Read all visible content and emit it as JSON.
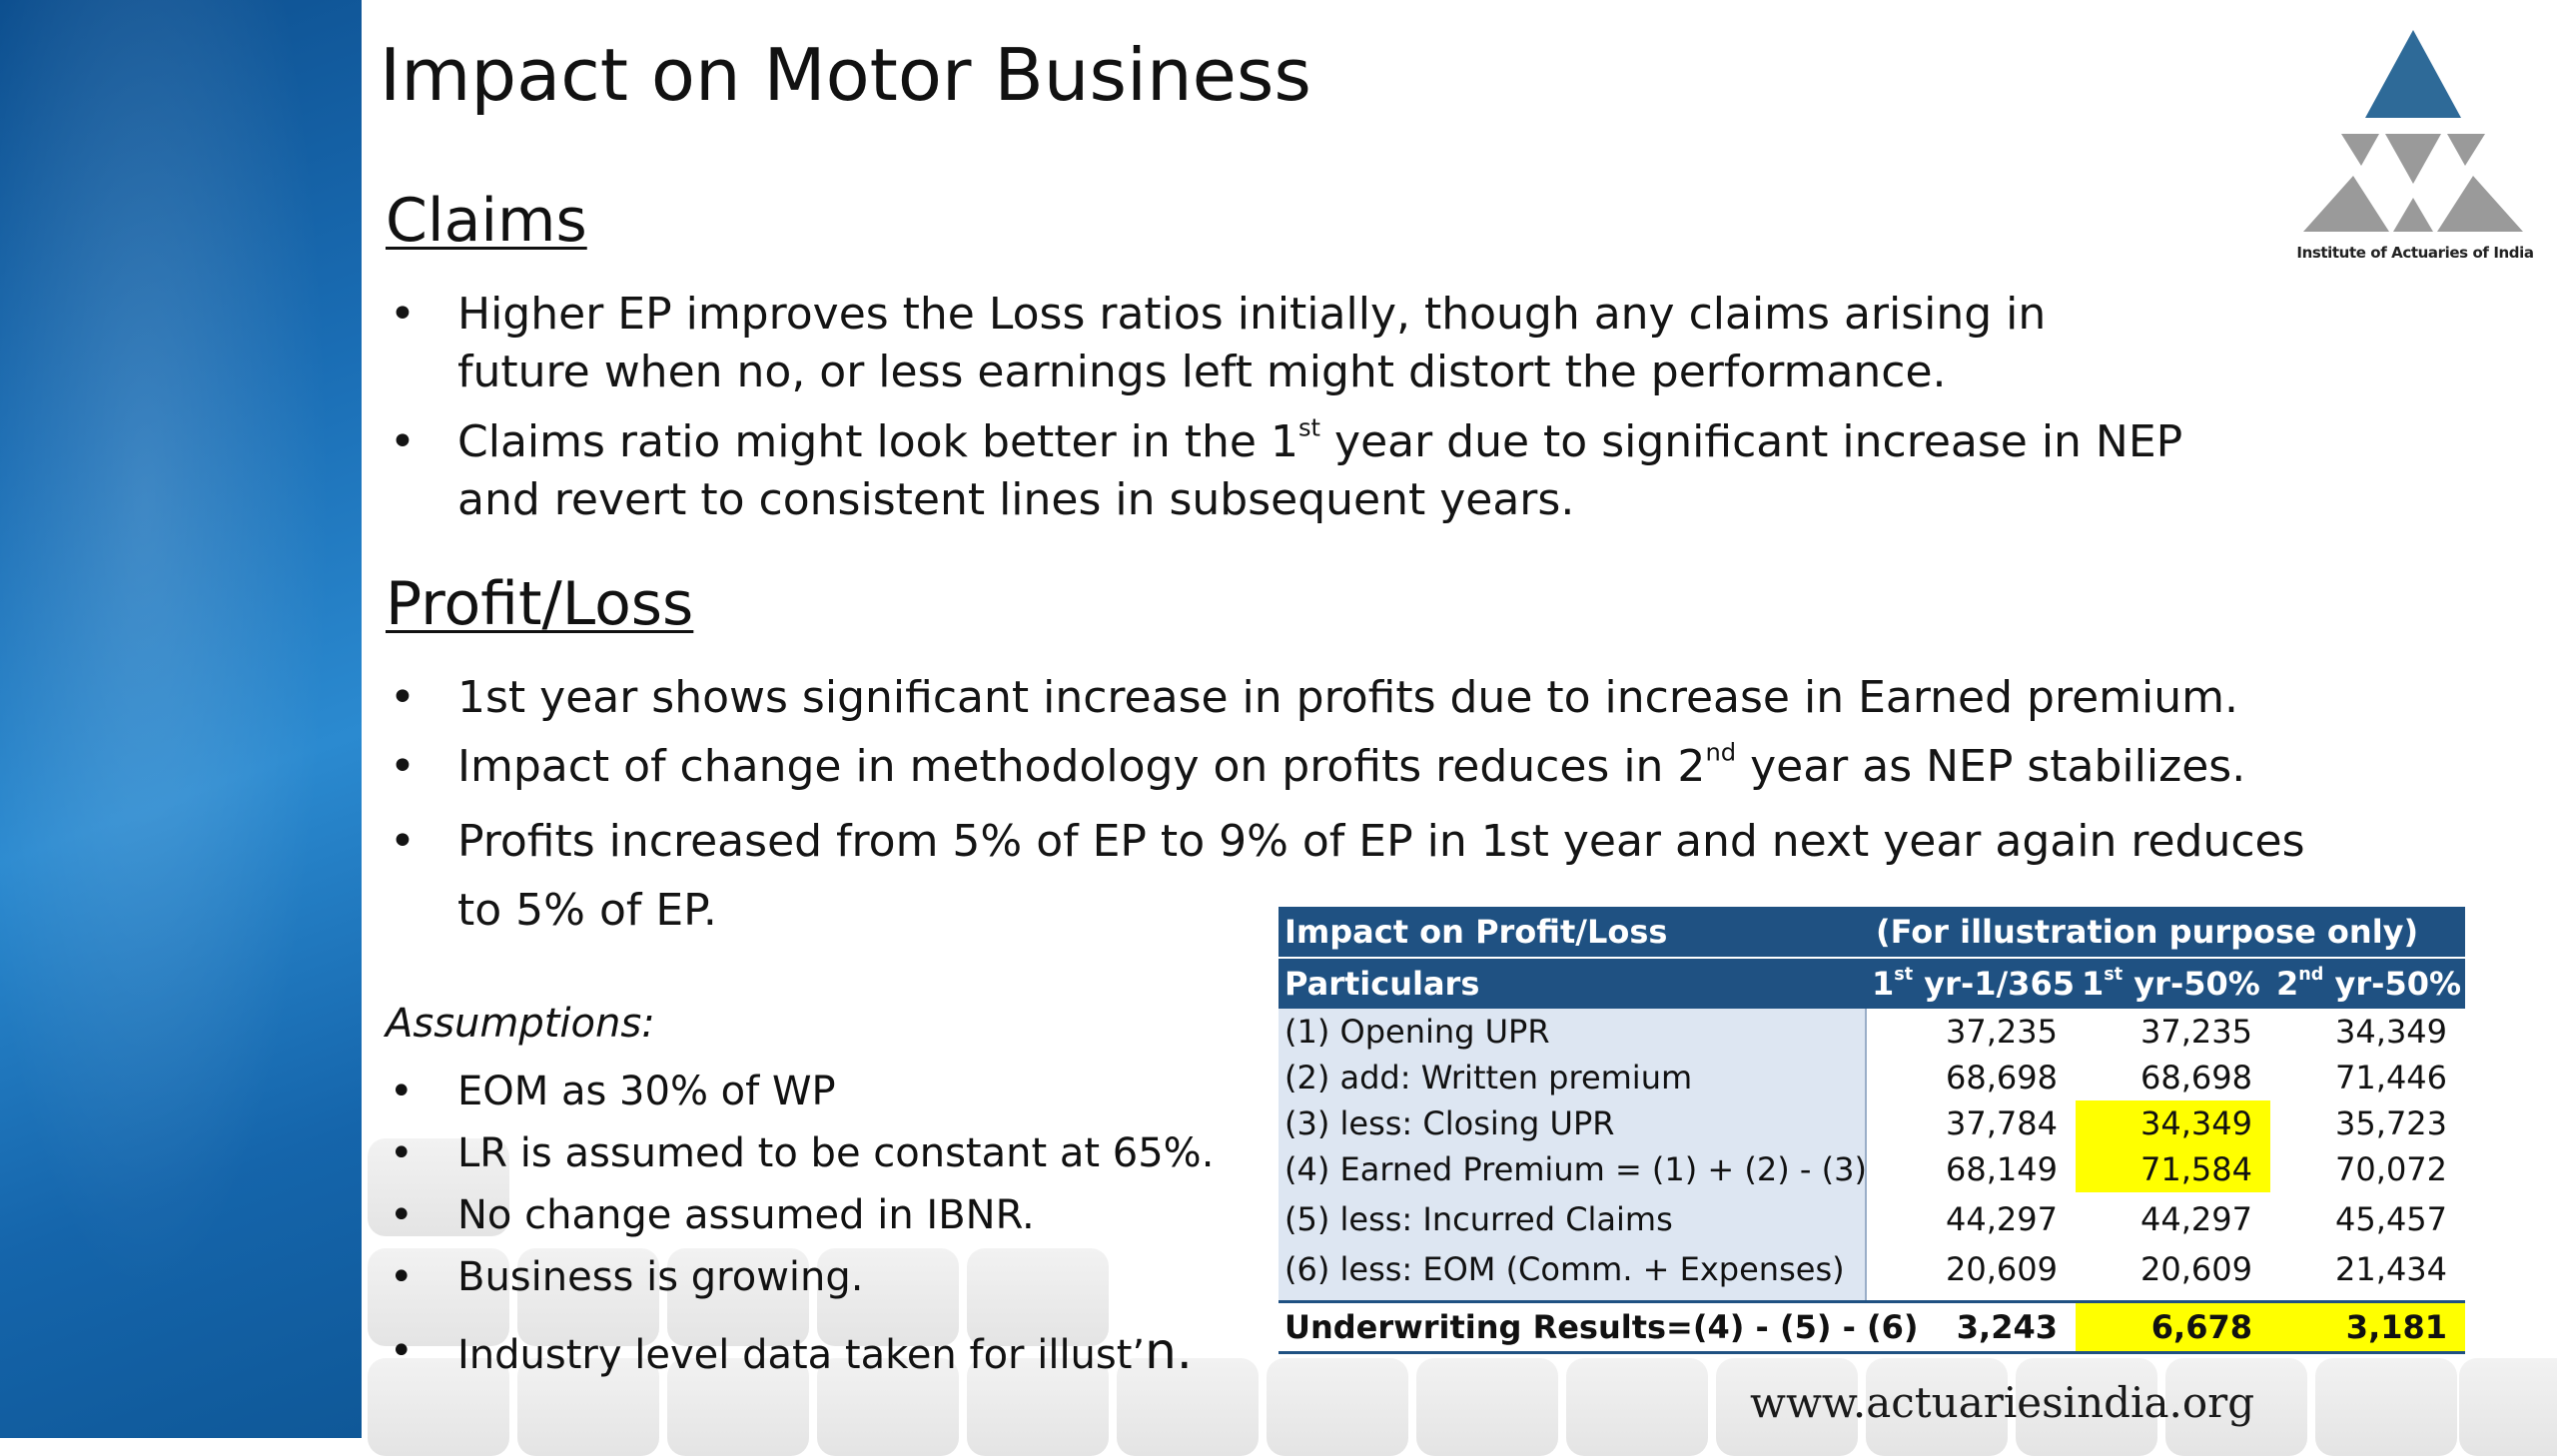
{
  "slide": {
    "title": "Impact on Motor Business",
    "logo_caption": "Institute of Actuaries of India",
    "footer_url": "www.actuariesindia.org"
  },
  "claims": {
    "heading": "Claims",
    "bullet1": "Higher EP improves the Loss ratios initially, though any claims arising in future when no, or less earnings left might distort the performance.",
    "bullet2_before": "Claims ratio might look better in the 1",
    "bullet2_sup": "st",
    "bullet2_after": "  year due to significant increase in NEP and revert to consistent lines in subsequent years."
  },
  "profit_loss": {
    "heading": "Profit/Loss",
    "bullet1": "1st year shows significant increase in profits due to increase in Earned premium.",
    "bullet2_before": "Impact of change in methodology on profits reduces in 2",
    "bullet2_sup": "nd",
    "bullet2_after": " year as NEP stabilizes.",
    "bullet3": "Profits increased from 5% of EP to 9% of EP in 1st year and next year again reduces to 5% of EP."
  },
  "assumptions": {
    "heading": "Assumptions:",
    "item1": "EOM as 30% of WP",
    "item2": "LR is assumed to be constant at 65%.",
    "item3": "No change assumed in IBNR.",
    "item4": "Business is growing.",
    "item5_main": "Industry level data taken for illust’",
    "item5_tail": "n."
  },
  "table": {
    "title": "Impact on Profit/Loss",
    "note": "(For illustration purpose only)",
    "col_label": "Particulars",
    "col1_a": "1",
    "col1_sup": "st",
    "col1_b": " yr-1/365",
    "col2_a": "1",
    "col2_sup": "st",
    "col2_b": " yr-50%",
    "col3_a": "2",
    "col3_sup": "nd",
    "col3_b": " yr-50%",
    "rows": [
      {
        "label": "(1) Opening UPR",
        "v1": "37,235",
        "v2": "37,235",
        "v3": "34,349"
      },
      {
        "label": "(2) add: Written premium",
        "v1": "68,698",
        "v2": "68,698",
        "v3": "71,446"
      },
      {
        "label": "(3) less: Closing UPR",
        "v1": "37,784",
        "v2": "34,349",
        "v3": "35,723"
      },
      {
        "label": "(4) Earned Premium = (1) + (2) - (3)",
        "v1": "68,149",
        "v2": "71,584",
        "v3": "70,072"
      },
      {
        "label": "(5) less: Incurred Claims",
        "v1": "44,297",
        "v2": "44,297",
        "v3": "45,457"
      },
      {
        "label": "(6) less: EOM (Comm. + Expenses)",
        "v1": "20,609",
        "v2": "20,609",
        "v3": "21,434"
      }
    ],
    "total": {
      "label": "Underwriting Results=(4) - (5) - (6)",
      "v1": "3,243",
      "v2": "6,678",
      "v3": "3,181"
    }
  },
  "colors": {
    "side_band": "#1a6db4",
    "table_header": "#1f5182",
    "label_cells": "#dde6f2",
    "highlight": "#ffff00",
    "logo": "#2e6a98"
  }
}
